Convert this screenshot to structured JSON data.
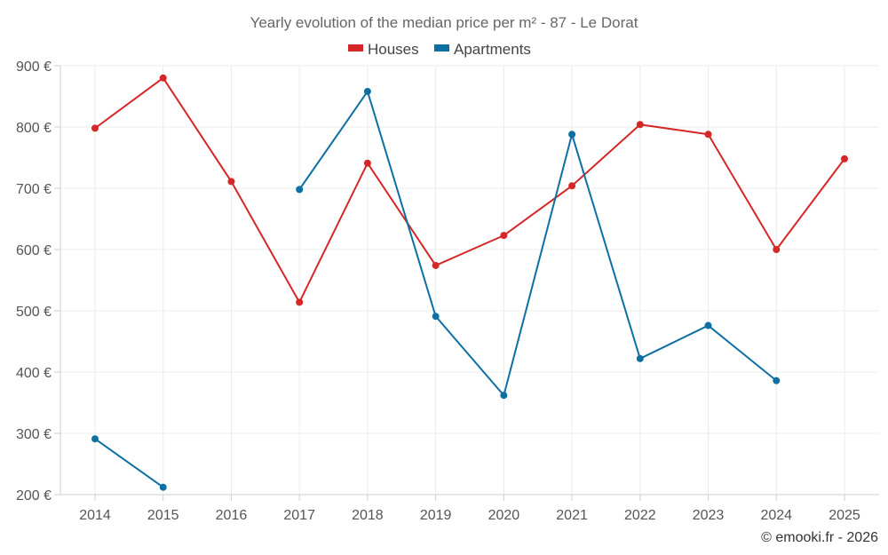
{
  "chart_data": {
    "type": "line",
    "title": "Yearly evolution of the median price per m² - 87 - Le Dorat",
    "x": [
      "2014",
      "2015",
      "2016",
      "2017",
      "2018",
      "2019",
      "2020",
      "2021",
      "2022",
      "2023",
      "2024",
      "2025"
    ],
    "ylim": [
      200,
      900
    ],
    "yticks": [
      200,
      300,
      400,
      500,
      600,
      700,
      800,
      900
    ],
    "ytick_labels": [
      "200 €",
      "300 €",
      "400 €",
      "500 €",
      "600 €",
      "700 €",
      "800 €",
      "900 €"
    ],
    "grid": true,
    "legend_position": "top-center",
    "series": [
      {
        "name": "Houses",
        "color": "#d62728",
        "values": [
          798,
          880,
          711,
          514,
          741,
          574,
          623,
          704,
          804,
          788,
          600,
          748
        ]
      },
      {
        "name": "Apartments",
        "color": "#0e6fa3",
        "values": [
          291,
          212,
          null,
          698,
          858,
          491,
          362,
          788,
          422,
          476,
          386,
          null
        ]
      }
    ]
  },
  "credit": "© emooki.fr - 2026"
}
